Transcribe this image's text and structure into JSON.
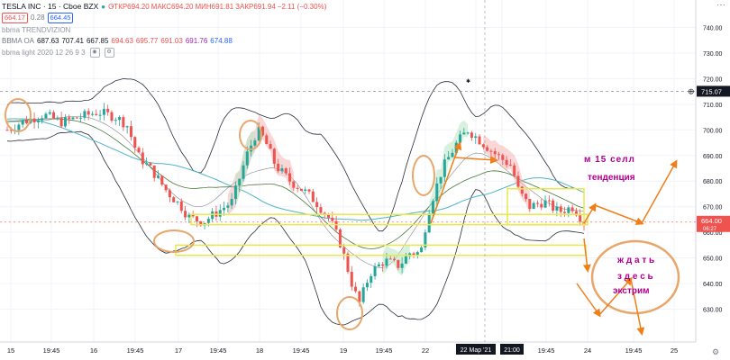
{
  "header": {
    "symbol": "TESLA INC · 15 · Cboe BZX",
    "ohlc": [
      {
        "k": "ОТКР",
        "v": "694.20"
      },
      {
        "k": "МАКС",
        "v": "694.20"
      },
      {
        "k": "МИН",
        "v": "691.81"
      },
      {
        "k": "ЗАКР",
        "v": "691.94"
      },
      {
        "k": "",
        "v": "−2.11 (−0.30%)"
      }
    ],
    "bid": "664.17",
    "spread": "0.28",
    "ask": "664.45",
    "ind1": "bbma TRENDVIZION",
    "ind2_name": "BBMA OA",
    "ind2_values": [
      "687.63",
      "707.41",
      "667.85",
      "694.63",
      "695.77",
      "691.03",
      "691.76",
      "674.88"
    ],
    "ind3": "bbma light 2020 12 26 9 3"
  },
  "colors": {
    "up": "#26a69a",
    "down": "#ef5350",
    "highlight": "#e8e84a",
    "annot_circle": "#e8a66a",
    "arrow": "#f07f1a",
    "text_annot": "#c0008f",
    "purple": "#b00090"
  },
  "chart_data": {
    "type": "candlestick",
    "y_axis": {
      "min": 620,
      "max": 750,
      "ticks": [
        630,
        640,
        650,
        660,
        670,
        680,
        690,
        700,
        710,
        720,
        730,
        740
      ]
    },
    "x_ticks": [
      "15",
      "19:45",
      "16",
      "19:45",
      "17",
      "19:45",
      "18",
      "19:45",
      "19",
      "19:45",
      "22",
      "22 Мар '21",
      "21:00",
      "19:45",
      "24",
      "19:45",
      "25"
    ],
    "last_price": "715.07",
    "current_price": "664.00",
    "countdown": "06:27",
    "price_path": [
      {
        "t": 0,
        "p": 700
      },
      {
        "t": 8,
        "p": 703
      },
      {
        "t": 20,
        "p": 706
      },
      {
        "t": 30,
        "p": 703
      },
      {
        "t": 40,
        "p": 705
      },
      {
        "t": 50,
        "p": 707
      },
      {
        "t": 60,
        "p": 705
      },
      {
        "t": 66,
        "p": 702
      },
      {
        "t": 72,
        "p": 690
      },
      {
        "t": 80,
        "p": 684
      },
      {
        "t": 88,
        "p": 676
      },
      {
        "t": 96,
        "p": 670
      },
      {
        "t": 100,
        "p": 666
      },
      {
        "t": 108,
        "p": 664
      },
      {
        "t": 116,
        "p": 668
      },
      {
        "t": 124,
        "p": 672
      },
      {
        "t": 132,
        "p": 690
      },
      {
        "t": 138,
        "p": 700
      },
      {
        "t": 142,
        "p": 696
      },
      {
        "t": 148,
        "p": 686
      },
      {
        "t": 156,
        "p": 680
      },
      {
        "t": 164,
        "p": 676
      },
      {
        "t": 170,
        "p": 672
      },
      {
        "t": 178,
        "p": 665
      },
      {
        "t": 184,
        "p": 655
      },
      {
        "t": 190,
        "p": 640
      },
      {
        "t": 194,
        "p": 632
      },
      {
        "t": 200,
        "p": 644
      },
      {
        "t": 208,
        "p": 649
      },
      {
        "t": 216,
        "p": 647
      },
      {
        "t": 222,
        "p": 652
      },
      {
        "t": 228,
        "p": 652
      },
      {
        "t": 232,
        "p": 668
      },
      {
        "t": 240,
        "p": 685
      },
      {
        "t": 248,
        "p": 695
      },
      {
        "t": 254,
        "p": 700
      },
      {
        "t": 262,
        "p": 695
      },
      {
        "t": 270,
        "p": 690
      },
      {
        "t": 278,
        "p": 686
      },
      {
        "t": 282,
        "p": 676
      },
      {
        "t": 288,
        "p": 670
      },
      {
        "t": 296,
        "p": 672
      },
      {
        "t": 304,
        "p": 668
      },
      {
        "t": 312,
        "p": 670
      },
      {
        "t": 318,
        "p": 664
      }
    ],
    "annotations": [
      "м 15 селл",
      "тенденция",
      "ж д а т ь",
      "з д е с ь",
      "экстрим"
    ]
  }
}
